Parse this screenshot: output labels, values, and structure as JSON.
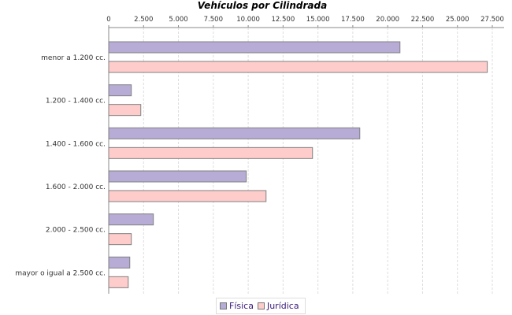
{
  "chart_data": {
    "type": "bar",
    "orientation": "horizontal",
    "title": "Vehículos por Cilindrada",
    "categories": [
      "menor a 1.200 cc.",
      "1.200 - 1.400 cc.",
      "1.400 - 1.600 cc.",
      "1.600 - 2.000 cc.",
      "2.000 - 2.500 cc.",
      "mayor o igual a 2.500 cc."
    ],
    "series": [
      {
        "name": "Física",
        "color": "#b7acd6",
        "values": [
          20880,
          1620,
          18000,
          9860,
          3200,
          1510
        ]
      },
      {
        "name": "Jurídica",
        "color": "#ffcccc",
        "values": [
          27140,
          2300,
          14610,
          11280,
          1620,
          1400
        ]
      }
    ],
    "xlim": [
      0,
      27500
    ],
    "ticks": [
      "0",
      "2.500",
      "5.000",
      "7.500",
      "10.000",
      "12.500",
      "15.000",
      "17.500",
      "20.000",
      "22.500",
      "25.000",
      "27.500"
    ],
    "tick_values": [
      0,
      2500,
      5000,
      7500,
      10000,
      12500,
      15000,
      17500,
      20000,
      22500,
      25000,
      27500
    ],
    "axis_position": "top",
    "grid": true,
    "legend_placement": "bottom"
  }
}
